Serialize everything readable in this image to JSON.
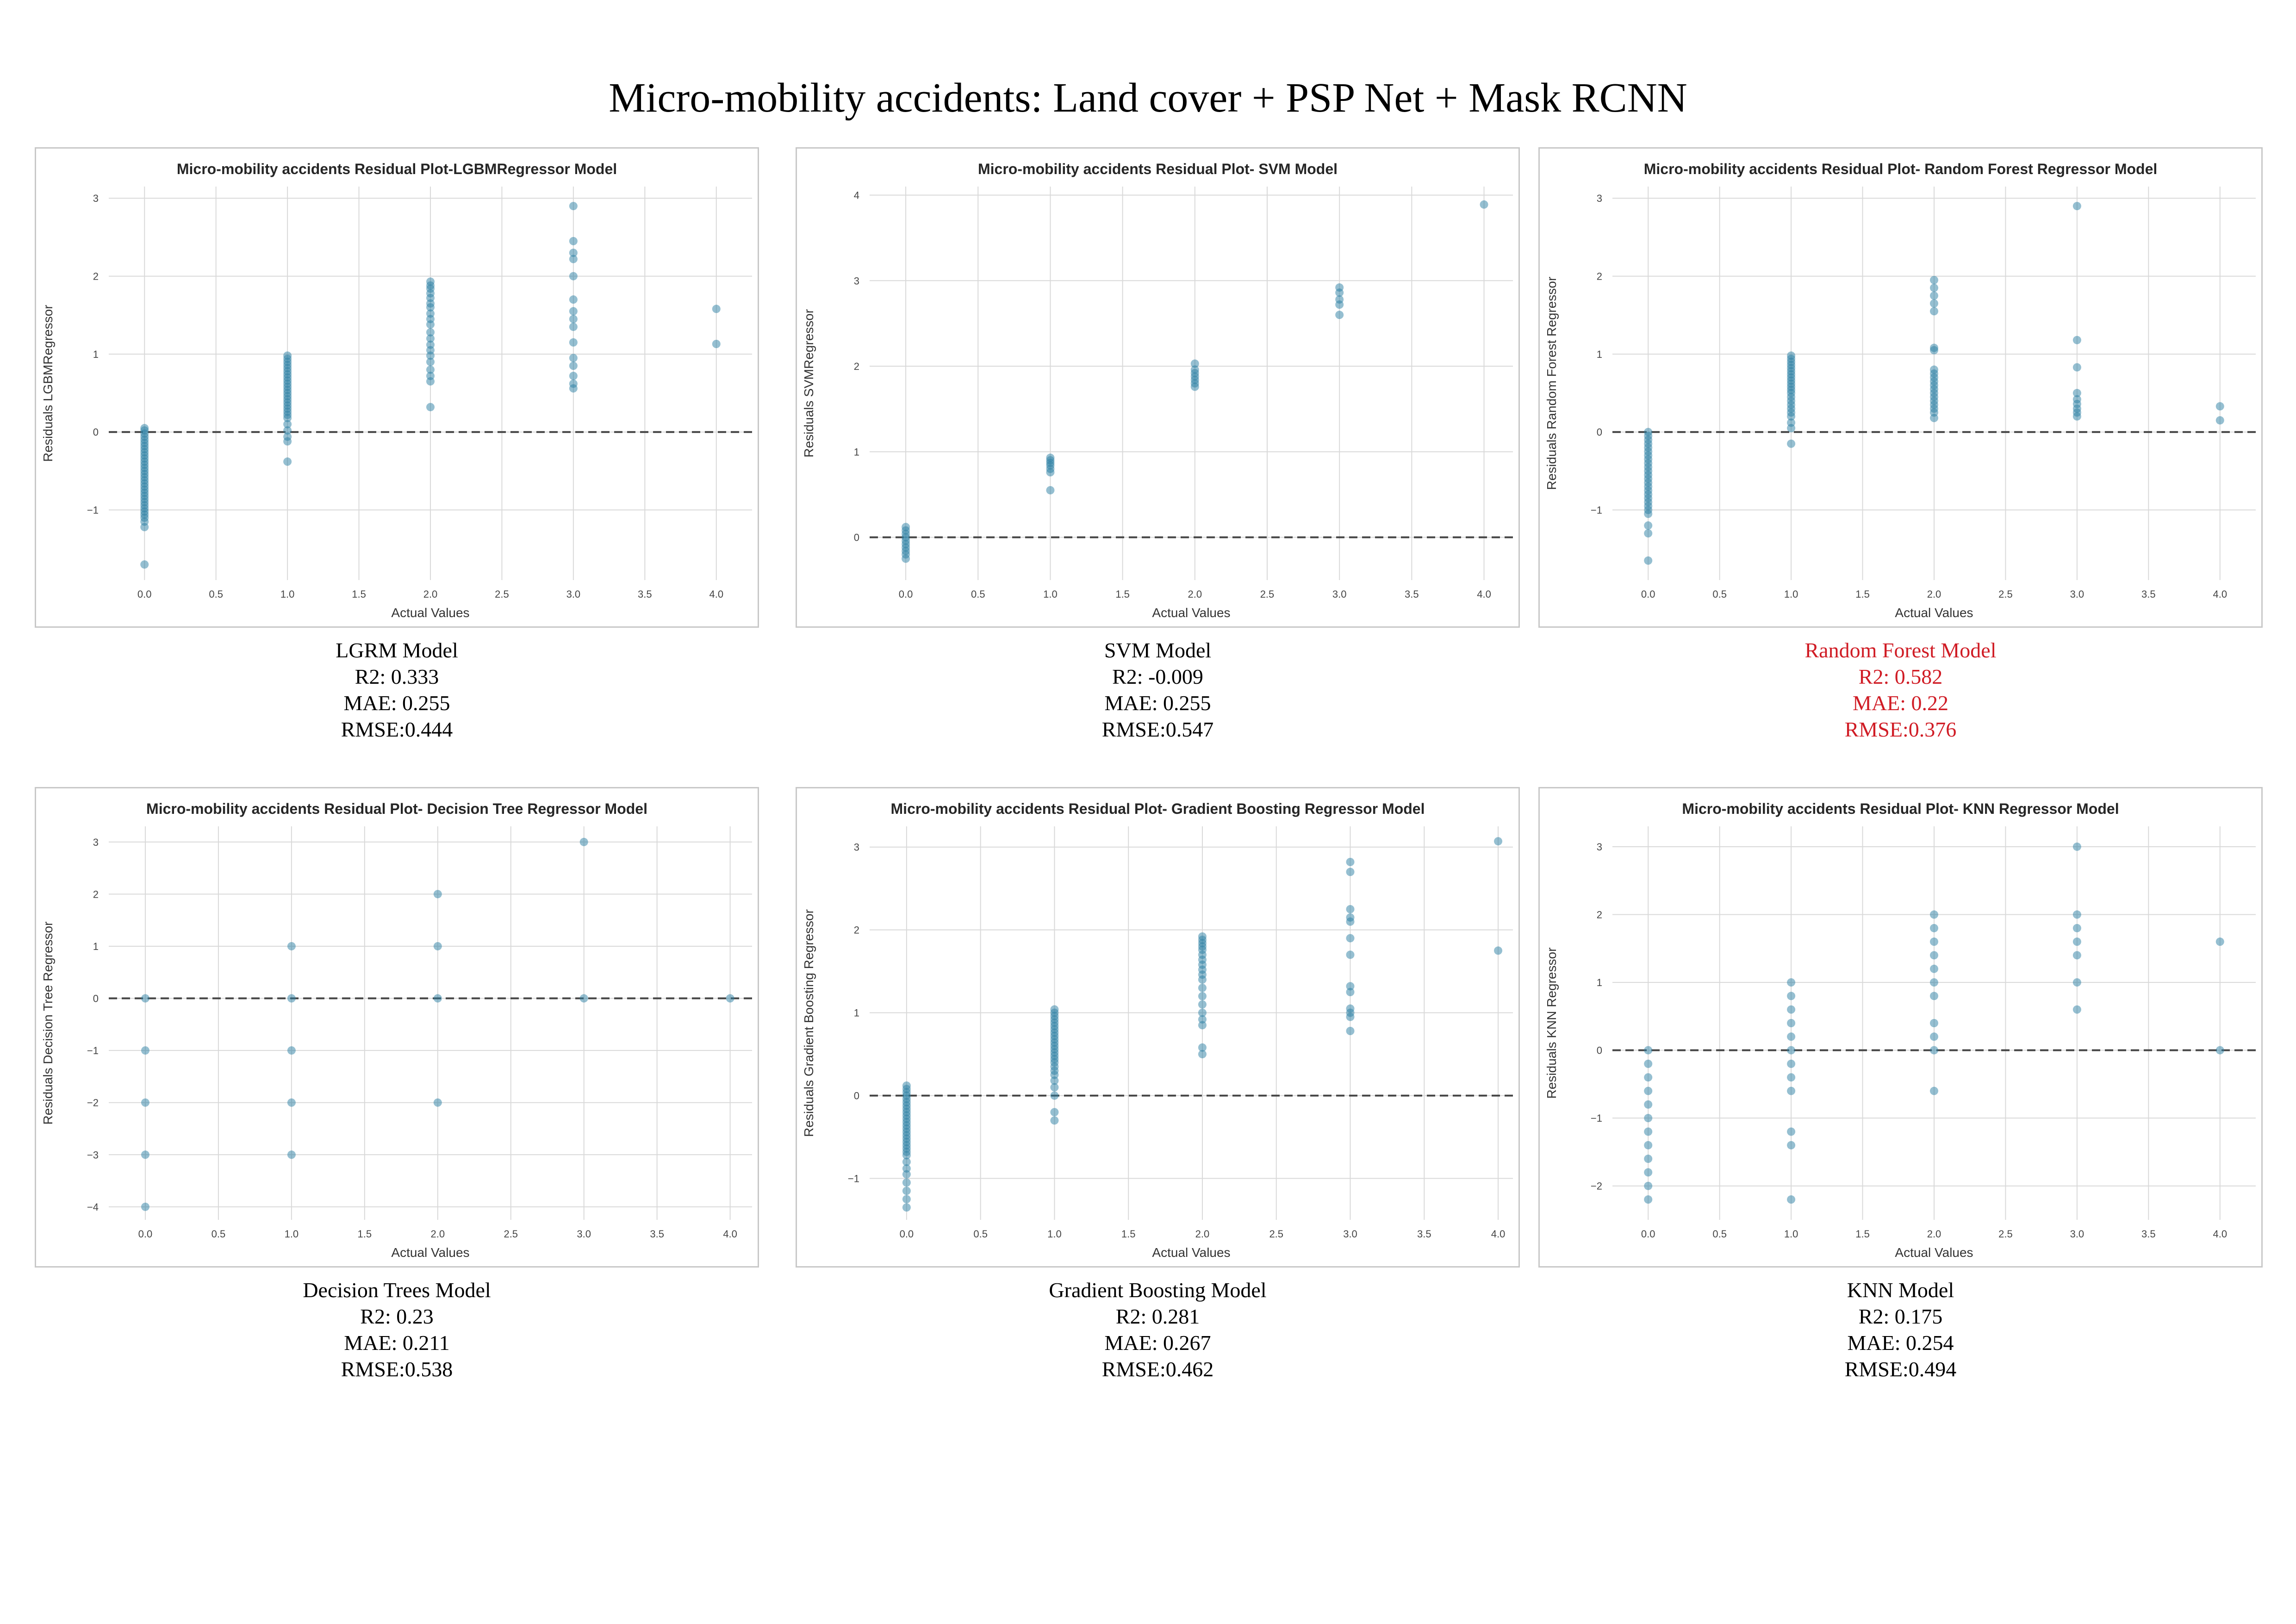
{
  "page_title": "Micro-mobility accidents: Land cover + PSP Net + Mask RCNN",
  "colors": {
    "point": "#2b7fa3",
    "zero_line": "#444444",
    "grid": "#d9d9d9",
    "frame": "#c8c8c8",
    "highlight": "#d01c25"
  },
  "panels": [
    {
      "caption": {
        "model": "LGRM Model",
        "r2": "R2: 0.333",
        "mae": "MAE: 0.255",
        "rmse": "RMSE:0.444"
      },
      "highlight": false
    },
    {
      "caption": {
        "model": "SVM Model",
        "r2": "R2: -0.009",
        "mae": "MAE: 0.255",
        "rmse": "RMSE:0.547"
      },
      "highlight": false
    },
    {
      "caption": {
        "model": "Random Forest Model",
        "r2": "R2: 0.582",
        "mae": "MAE: 0.22",
        "rmse": "RMSE:0.376"
      },
      "highlight": true
    },
    {
      "caption": {
        "model": "Decision Trees Model",
        "r2": "R2: 0.23",
        "mae": "MAE: 0.211",
        "rmse": "RMSE:0.538"
      },
      "highlight": false
    },
    {
      "caption": {
        "model": "Gradient Boosting Model",
        "r2": "R2: 0.281",
        "mae": "MAE: 0.267",
        "rmse": "RMSE:0.462"
      },
      "highlight": false
    },
    {
      "caption": {
        "model": "KNN Model",
        "r2": "R2: 0.175",
        "mae": "MAE: 0.254",
        "rmse": "RMSE:0.494"
      },
      "highlight": false
    }
  ],
  "chart_data": [
    {
      "type": "scatter",
      "title": "Micro-mobility accidents Residual Plot-LGBMRegressor Model",
      "xlabel": "Actual Values",
      "ylabel": "Residuals LGBMRegressor",
      "xlim": [
        -0.25,
        4.25
      ],
      "ylim": [
        -1.9,
        3.15
      ],
      "xticks": [
        "0.0",
        "0.5",
        "1.0",
        "1.5",
        "2.0",
        "2.5",
        "3.0",
        "3.5",
        "4.0"
      ],
      "yticks": [
        -1,
        0,
        1,
        2,
        3
      ],
      "zero_line": 0,
      "grid": true,
      "points": [
        {
          "x": 0,
          "y": [
            0.05,
            0.02,
            -0.02,
            -0.06,
            -0.1,
            -0.14,
            -0.18,
            -0.22,
            -0.26,
            -0.3,
            -0.34,
            -0.38,
            -0.42,
            -0.46,
            -0.5,
            -0.54,
            -0.58,
            -0.62,
            -0.66,
            -0.7,
            -0.74,
            -0.78,
            -0.82,
            -0.86,
            -0.9,
            -0.94,
            -0.98,
            -1.02,
            -1.06,
            -1.1,
            -1.15,
            -1.22,
            -1.7
          ]
        },
        {
          "x": 1,
          "y": [
            0.98,
            0.94,
            0.9,
            0.86,
            0.82,
            0.78,
            0.74,
            0.7,
            0.66,
            0.62,
            0.58,
            0.54,
            0.5,
            0.46,
            0.42,
            0.38,
            0.34,
            0.3,
            0.26,
            0.22,
            0.18,
            0.1,
            0.02,
            -0.06,
            -0.12,
            -0.38
          ]
        },
        {
          "x": 2,
          "y": [
            1.93,
            1.88,
            1.84,
            1.78,
            1.72,
            1.65,
            1.6,
            1.52,
            1.45,
            1.38,
            1.28,
            1.2,
            1.12,
            1.05,
            0.98,
            0.9,
            0.8,
            0.72,
            0.65,
            0.32
          ]
        },
        {
          "x": 3,
          "y": [
            2.9,
            2.45,
            2.3,
            2.22,
            2.0,
            1.7,
            1.55,
            1.45,
            1.35,
            1.15,
            0.95,
            0.85,
            0.72,
            0.62,
            0.56
          ]
        },
        {
          "x": 4,
          "y": [
            1.58,
            1.13
          ]
        }
      ]
    },
    {
      "type": "scatter",
      "title": "Micro-mobility accidents Residual Plot- SVM Model",
      "xlabel": "Actual Values",
      "ylabel": "Residuals SVMRegressor",
      "xlim": [
        -0.25,
        4.2
      ],
      "ylim": [
        -0.5,
        4.1
      ],
      "xticks": [
        "0.0",
        "0.5",
        "1.0",
        "1.5",
        "2.0",
        "2.5",
        "3.0",
        "3.5",
        "4.0"
      ],
      "yticks": [
        0,
        1,
        2,
        3,
        4
      ],
      "zero_line": 0,
      "grid": true,
      "points": [
        {
          "x": 0,
          "y": [
            0.12,
            0.08,
            0.04,
            0.0,
            -0.04,
            -0.08,
            -0.12,
            -0.16,
            -0.2,
            -0.25
          ]
        },
        {
          "x": 1,
          "y": [
            0.93,
            0.9,
            0.87,
            0.84,
            0.8,
            0.76,
            0.55
          ]
        },
        {
          "x": 2,
          "y": [
            2.03,
            1.96,
            1.92,
            1.88,
            1.84,
            1.8,
            1.76
          ]
        },
        {
          "x": 3,
          "y": [
            2.92,
            2.86,
            2.78,
            2.72,
            2.6
          ]
        },
        {
          "x": 4,
          "y": [
            3.89
          ]
        }
      ]
    },
    {
      "type": "scatter",
      "title": "Micro-mobility accidents Residual Plot- Random Forest Regressor Model",
      "xlabel": "Actual Values",
      "ylabel": "Residuals Random Forest Regressor",
      "xlim": [
        -0.25,
        4.25
      ],
      "ylim": [
        -1.9,
        3.15
      ],
      "xticks": [
        "0.0",
        "0.5",
        "1.0",
        "1.5",
        "2.0",
        "2.5",
        "3.0",
        "3.5",
        "4.0"
      ],
      "yticks": [
        -1,
        0,
        1,
        2,
        3
      ],
      "zero_line": 0,
      "grid": true,
      "points": [
        {
          "x": 0,
          "y": [
            0.0,
            -0.05,
            -0.1,
            -0.15,
            -0.2,
            -0.25,
            -0.3,
            -0.35,
            -0.4,
            -0.45,
            -0.5,
            -0.55,
            -0.6,
            -0.65,
            -0.7,
            -0.75,
            -0.8,
            -0.85,
            -0.9,
            -0.95,
            -1.0,
            -1.05,
            -1.2,
            -1.3,
            -1.65
          ]
        },
        {
          "x": 1,
          "y": [
            0.98,
            0.94,
            0.9,
            0.86,
            0.82,
            0.78,
            0.74,
            0.7,
            0.66,
            0.62,
            0.58,
            0.54,
            0.5,
            0.45,
            0.4,
            0.35,
            0.3,
            0.25,
            0.2,
            0.12,
            0.05,
            -0.15
          ]
        },
        {
          "x": 2,
          "y": [
            1.95,
            1.85,
            1.75,
            1.65,
            1.55,
            1.08,
            1.05,
            0.8,
            0.75,
            0.7,
            0.65,
            0.6,
            0.55,
            0.5,
            0.45,
            0.4,
            0.35,
            0.3,
            0.25,
            0.18
          ]
        },
        {
          "x": 3,
          "y": [
            2.9,
            1.18,
            0.83,
            0.5,
            0.42,
            0.36,
            0.3,
            0.25,
            0.2
          ]
        },
        {
          "x": 4,
          "y": [
            0.33,
            0.15
          ]
        }
      ]
    },
    {
      "type": "scatter",
      "title": "Micro-mobility accidents Residual Plot- Decision Tree Regressor Model",
      "xlabel": "Actual Values",
      "ylabel": "Residuals Decision Tree Regressor",
      "xlim": [
        -0.25,
        4.15
      ],
      "ylim": [
        -4.25,
        3.3
      ],
      "xticks": [
        "0.0",
        "0.5",
        "1.0",
        "1.5",
        "2.0",
        "2.5",
        "3.0",
        "3.5",
        "4.0"
      ],
      "yticks": [
        -4,
        -3,
        -2,
        -1,
        0,
        1,
        2,
        3
      ],
      "zero_line": 0,
      "grid": true,
      "points": [
        {
          "x": 0,
          "y": [
            0,
            -1,
            -2,
            -3,
            -4
          ]
        },
        {
          "x": 1,
          "y": [
            1,
            0,
            -1,
            -2,
            -3
          ]
        },
        {
          "x": 2,
          "y": [
            2,
            1,
            0,
            -2
          ]
        },
        {
          "x": 3,
          "y": [
            3,
            0
          ]
        },
        {
          "x": 4,
          "y": [
            0
          ]
        }
      ]
    },
    {
      "type": "scatter",
      "title": "Micro-mobility accidents Residual Plot- Gradient Boosting Regressor Model",
      "xlabel": "Actual Values",
      "ylabel": "Residuals Gradient Boosting Regressor",
      "xlim": [
        -0.25,
        4.1
      ],
      "ylim": [
        -1.5,
        3.25
      ],
      "xticks": [
        "0.0",
        "0.5",
        "1.0",
        "1.5",
        "2.0",
        "2.5",
        "3.0",
        "3.5",
        "4.0"
      ],
      "yticks": [
        -1,
        0,
        1,
        2,
        3
      ],
      "zero_line": 0,
      "grid": true,
      "points": [
        {
          "x": 0,
          "y": [
            0.12,
            0.08,
            0.04,
            0.0,
            -0.04,
            -0.08,
            -0.12,
            -0.16,
            -0.2,
            -0.24,
            -0.28,
            -0.32,
            -0.36,
            -0.4,
            -0.44,
            -0.48,
            -0.52,
            -0.56,
            -0.6,
            -0.64,
            -0.68,
            -0.72,
            -0.8,
            -0.88,
            -0.95,
            -1.05,
            -1.15,
            -1.25,
            -1.35
          ]
        },
        {
          "x": 1,
          "y": [
            1.04,
            1.0,
            0.96,
            0.92,
            0.88,
            0.84,
            0.8,
            0.76,
            0.72,
            0.68,
            0.64,
            0.6,
            0.56,
            0.52,
            0.48,
            0.44,
            0.4,
            0.35,
            0.3,
            0.25,
            0.18,
            0.1,
            0.0,
            -0.2,
            -0.3
          ]
        },
        {
          "x": 2,
          "y": [
            1.92,
            1.88,
            1.84,
            1.8,
            1.76,
            1.7,
            1.64,
            1.58,
            1.52,
            1.46,
            1.4,
            1.3,
            1.2,
            1.1,
            1.0,
            0.92,
            0.85,
            0.58,
            0.5
          ]
        },
        {
          "x": 3,
          "y": [
            2.82,
            2.7,
            2.25,
            2.15,
            2.1,
            1.9,
            1.7,
            1.32,
            1.25,
            1.05,
            1.0,
            0.95,
            0.78
          ]
        },
        {
          "x": 4,
          "y": [
            3.07,
            1.75
          ]
        }
      ]
    },
    {
      "type": "scatter",
      "title": "Micro-mobility accidents Residual Plot- KNN Regressor Model",
      "xlabel": "Actual Values",
      "ylabel": "Residuals KNN Regressor",
      "xlim": [
        -0.25,
        4.25
      ],
      "ylim": [
        -2.5,
        3.3
      ],
      "xticks": [
        "0.0",
        "0.5",
        "1.0",
        "1.5",
        "2.0",
        "2.5",
        "3.0",
        "3.5",
        "4.0"
      ],
      "yticks": [
        -2,
        -1,
        0,
        1,
        2,
        3
      ],
      "zero_line": 0,
      "grid": true,
      "points": [
        {
          "x": 0,
          "y": [
            0.0,
            -0.2,
            -0.4,
            -0.6,
            -0.8,
            -1.0,
            -1.2,
            -1.4,
            -1.6,
            -1.8,
            -2.0,
            -2.2
          ]
        },
        {
          "x": 1,
          "y": [
            1.0,
            0.8,
            0.6,
            0.4,
            0.2,
            0.0,
            -0.2,
            -0.4,
            -0.6,
            -1.2,
            -1.4,
            -2.2
          ]
        },
        {
          "x": 2,
          "y": [
            2.0,
            1.8,
            1.6,
            1.4,
            1.2,
            1.0,
            0.8,
            0.4,
            0.2,
            0.0,
            -0.6
          ]
        },
        {
          "x": 3,
          "y": [
            3.0,
            2.0,
            1.8,
            1.6,
            1.4,
            1.0,
            0.6
          ]
        },
        {
          "x": 4,
          "y": [
            1.6,
            0.0
          ]
        }
      ]
    }
  ]
}
